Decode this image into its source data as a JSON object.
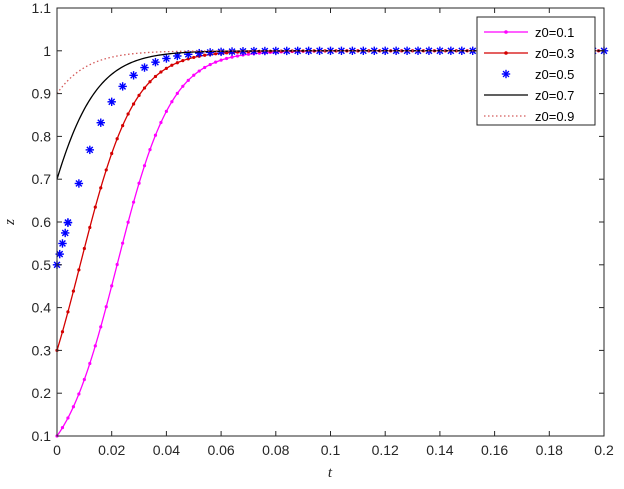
{
  "chart_data": {
    "type": "line",
    "xlabel": "t",
    "ylabel": "z",
    "xlim": [
      0,
      0.2
    ],
    "ylim": [
      0.1,
      1.1
    ],
    "xticks": [
      "0",
      "0.02",
      "0.04",
      "0.06",
      "0.08",
      "0.1",
      "0.12",
      "0.14",
      "0.16",
      "0.18",
      "0.2"
    ],
    "yticks": [
      "0.1",
      "0.2",
      "0.3",
      "0.4",
      "0.5",
      "0.6",
      "0.7",
      "0.8",
      "0.9",
      "1",
      "1.1"
    ],
    "grid": false,
    "legend_position": "top-right",
    "model": "logistic dz/dt = k z (1 - z), k = 100",
    "series": [
      {
        "name": "z0=0.1",
        "z0": 0.1,
        "color": "#ff00ff",
        "line": "solid",
        "marker": "dot"
      },
      {
        "name": "z0=0.3",
        "z0": 0.3,
        "color": "#d40000",
        "line": "solid",
        "marker": "dot"
      },
      {
        "name": "z0=0.5",
        "z0": 0.5,
        "color": "#0000ff",
        "line": "none",
        "marker": "asterisk"
      },
      {
        "name": "z0=0.7",
        "z0": 0.7,
        "color": "#000000",
        "line": "solid",
        "marker": "none"
      },
      {
        "name": "z0=0.9",
        "z0": 0.9,
        "color": "#d45a5a",
        "line": "dotted",
        "marker": "none"
      }
    ]
  }
}
